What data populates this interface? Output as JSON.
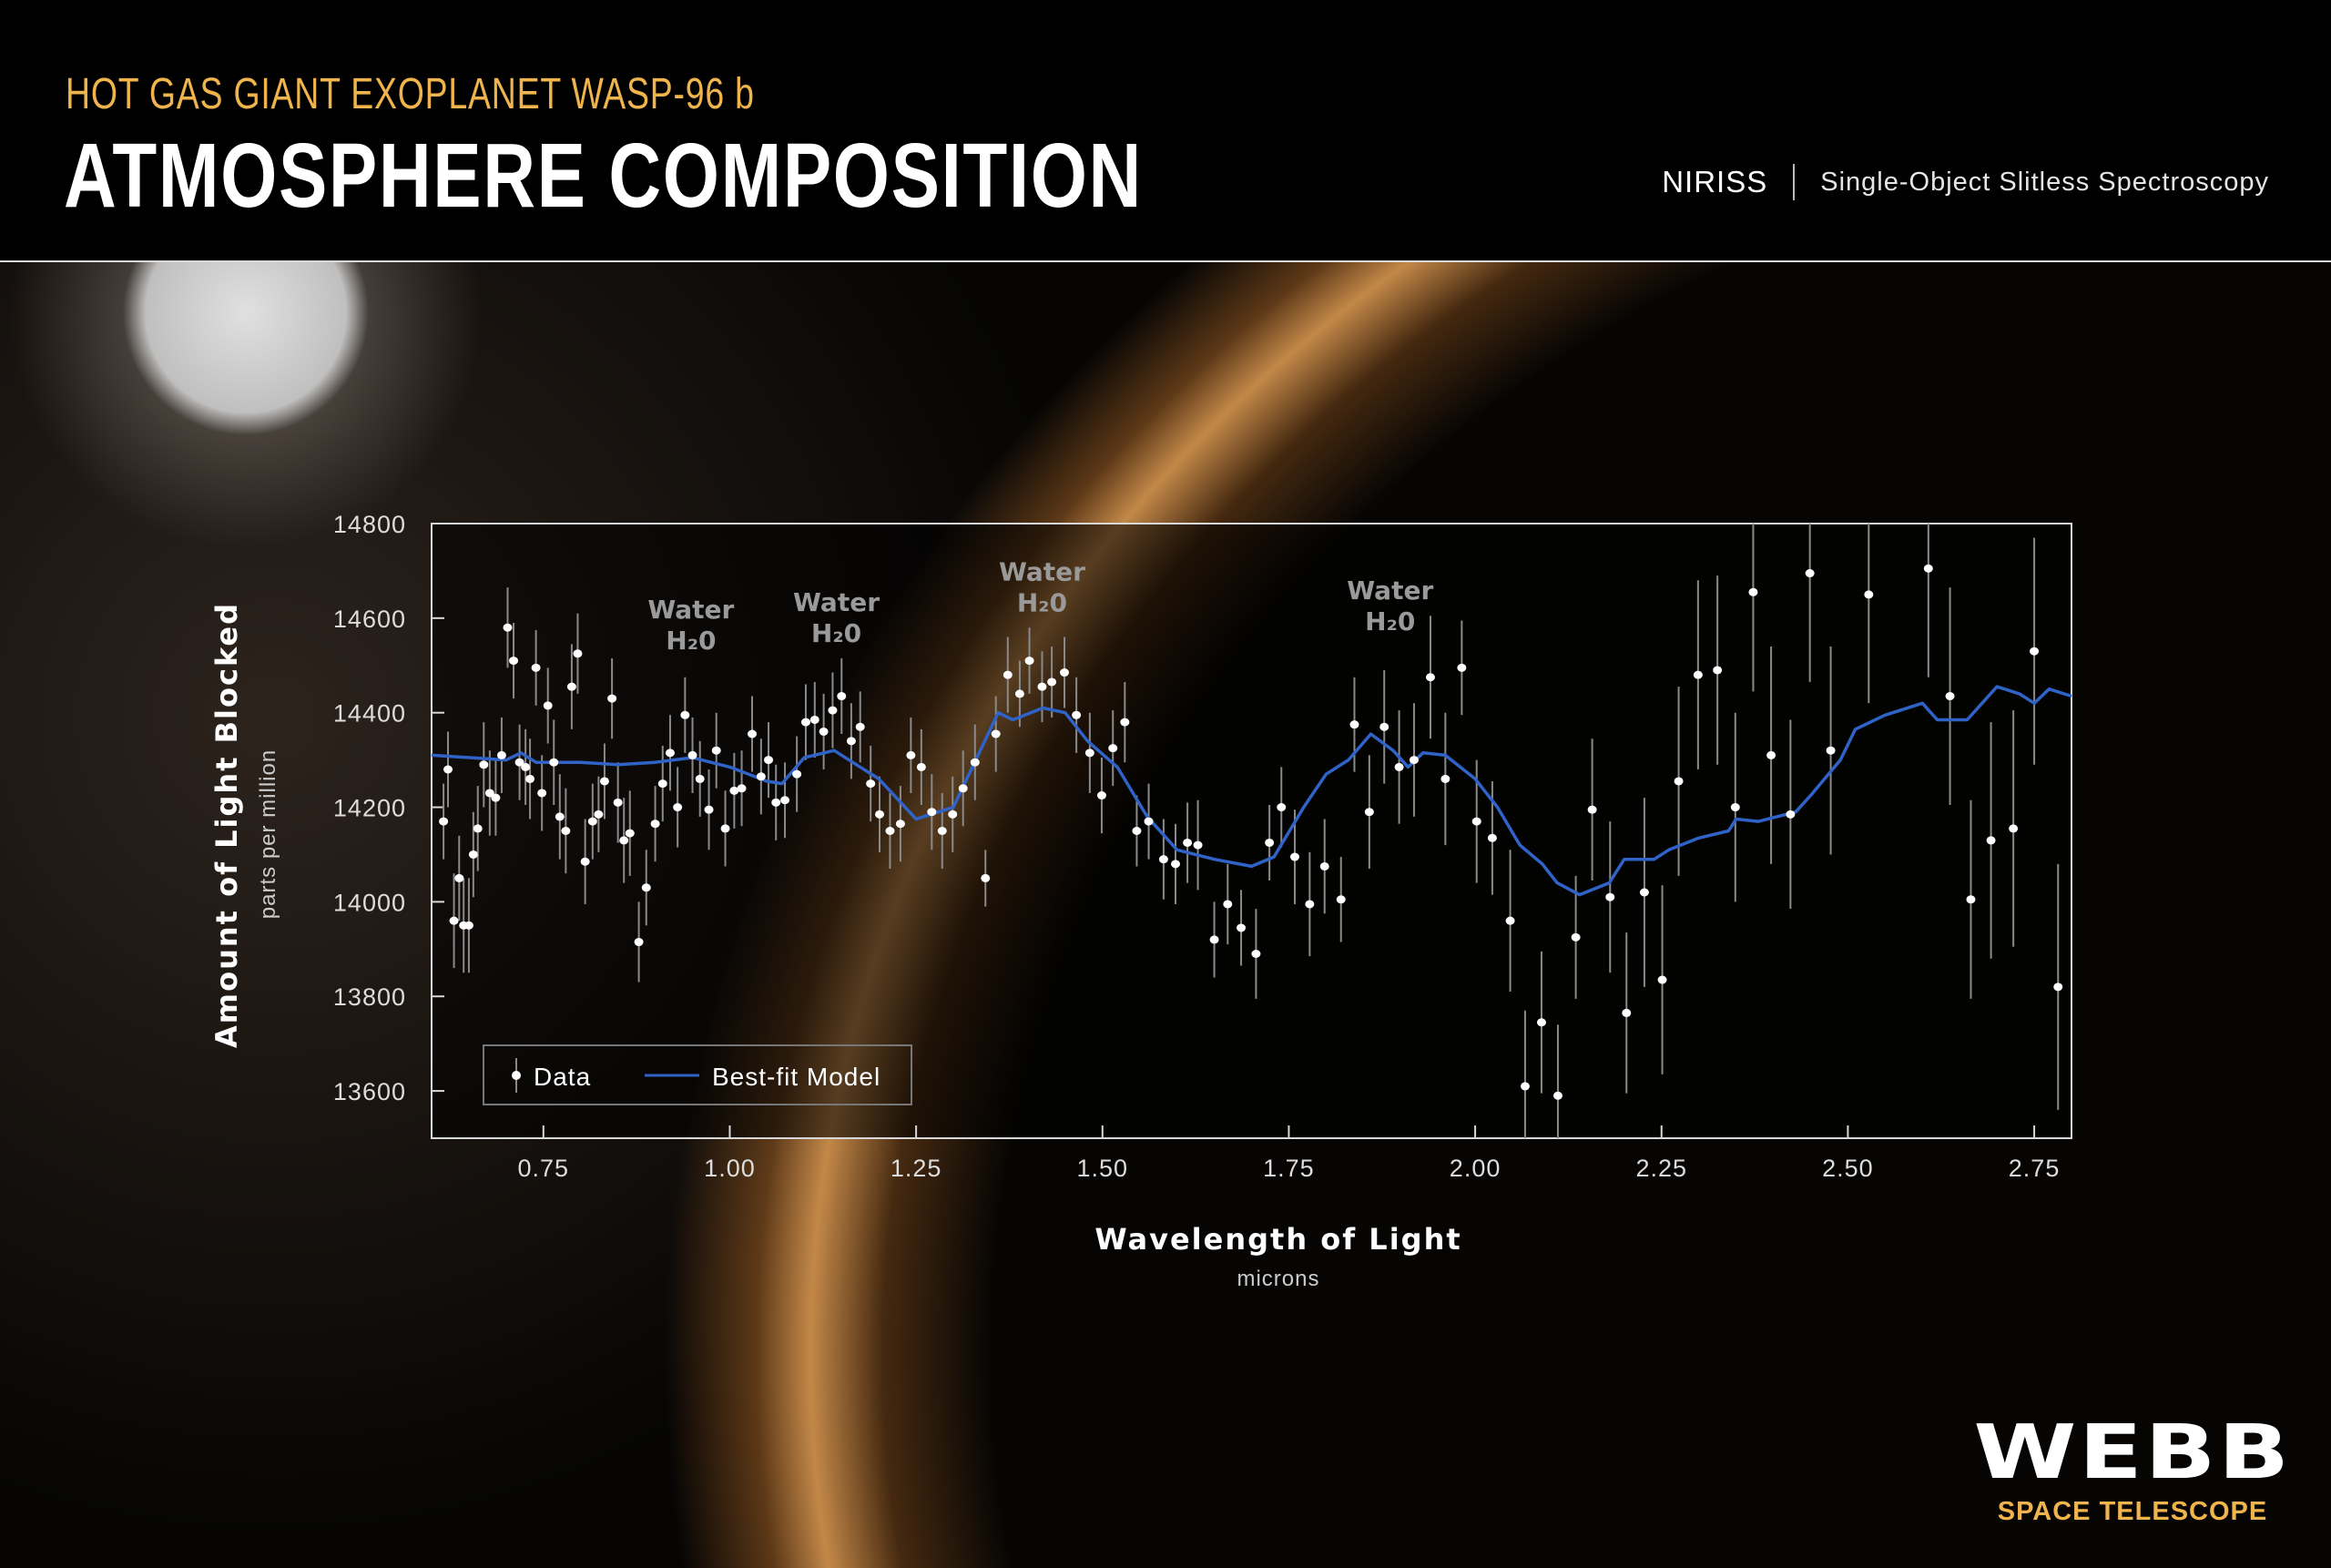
{
  "header": {
    "subtitle": "HOT GAS GIANT EXOPLANET WASP-96 b",
    "title": "ATMOSPHERE COMPOSITION",
    "instrument": "NIRISS",
    "mode": "Single-Object Slitless Spectroscopy"
  },
  "logo": {
    "name": "WEBB",
    "tagline": "SPACE TELESCOPE"
  },
  "colors": {
    "accent": "#f0b44c",
    "model": "#2f63c8",
    "data": "#ffffff",
    "errorbar": "#8a8a8a"
  },
  "chart_data": {
    "type": "scatter",
    "xlabel": "Wavelength of Light",
    "xunit": "microns",
    "ylabel": "Amount of Light Blocked",
    "yunit": "parts per million",
    "xlim": [
      0.6,
      2.8
    ],
    "ylim": [
      13500,
      14800
    ],
    "xticks": [
      "0.75",
      "1.00",
      "1.25",
      "1.50",
      "1.75",
      "2.00",
      "2.25",
      "2.50",
      "2.75"
    ],
    "yticks": [
      "13600",
      "13800",
      "14000",
      "14200",
      "14400",
      "14600",
      "14800"
    ],
    "grid": false,
    "legend": {
      "placement": "bottom-left",
      "entries": [
        "Data",
        "Best-fit Model"
      ]
    },
    "annotations": [
      {
        "text": "Water",
        "formula": "H₂0",
        "x": 0.948,
        "y": 14600
      },
      {
        "text": "Water",
        "formula": "H₂0",
        "x": 1.143,
        "y": 14615
      },
      {
        "text": "Water",
        "formula": "H₂0",
        "x": 1.419,
        "y": 14680
      },
      {
        "text": "Water",
        "formula": "H₂0",
        "x": 1.886,
        "y": 14640
      }
    ],
    "series": [
      {
        "name": "Data",
        "kind": "points-with-errorbars",
        "points": [
          [
            0.616,
            14170,
            80
          ],
          [
            0.622,
            14280,
            80
          ],
          [
            0.63,
            13960,
            100
          ],
          [
            0.637,
            14050,
            90
          ],
          [
            0.643,
            13950,
            100
          ],
          [
            0.65,
            13950,
            100
          ],
          [
            0.656,
            14100,
            90
          ],
          [
            0.662,
            14155,
            90
          ],
          [
            0.67,
            14290,
            90
          ],
          [
            0.678,
            14230,
            90
          ],
          [
            0.686,
            14220,
            80
          ],
          [
            0.694,
            14310,
            80
          ],
          [
            0.702,
            14580,
            85
          ],
          [
            0.71,
            14510,
            80
          ],
          [
            0.718,
            14295,
            80
          ],
          [
            0.726,
            14285,
            80
          ],
          [
            0.732,
            14260,
            85
          ],
          [
            0.74,
            14495,
            80
          ],
          [
            0.748,
            14230,
            80
          ],
          [
            0.756,
            14415,
            80
          ],
          [
            0.764,
            14295,
            90
          ],
          [
            0.772,
            14180,
            90
          ],
          [
            0.78,
            14150,
            90
          ],
          [
            0.788,
            14455,
            90
          ],
          [
            0.796,
            14525,
            85
          ],
          [
            0.806,
            14085,
            90
          ],
          [
            0.816,
            14170,
            80
          ],
          [
            0.824,
            14185,
            80
          ],
          [
            0.832,
            14255,
            80
          ],
          [
            0.842,
            14430,
            85
          ],
          [
            0.85,
            14210,
            85
          ],
          [
            0.858,
            14130,
            90
          ],
          [
            0.866,
            14145,
            90
          ],
          [
            0.878,
            13915,
            85
          ],
          [
            0.888,
            14030,
            80
          ],
          [
            0.9,
            14165,
            80
          ],
          [
            0.91,
            14250,
            80
          ],
          [
            0.92,
            14315,
            80
          ],
          [
            0.93,
            14200,
            85
          ],
          [
            0.94,
            14395,
            80
          ],
          [
            0.95,
            14310,
            80
          ],
          [
            0.96,
            14260,
            80
          ],
          [
            0.972,
            14195,
            85
          ],
          [
            0.982,
            14320,
            80
          ],
          [
            0.994,
            14155,
            80
          ],
          [
            1.006,
            14235,
            80
          ],
          [
            1.016,
            14240,
            80
          ],
          [
            1.03,
            14355,
            80
          ],
          [
            1.042,
            14265,
            80
          ],
          [
            1.052,
            14300,
            80
          ],
          [
            1.062,
            14210,
            80
          ],
          [
            1.074,
            14215,
            80
          ],
          [
            1.09,
            14270,
            80
          ],
          [
            1.102,
            14380,
            80
          ],
          [
            1.114,
            14385,
            80
          ],
          [
            1.126,
            14360,
            80
          ],
          [
            1.138,
            14405,
            80
          ],
          [
            1.15,
            14435,
            80
          ],
          [
            1.163,
            14340,
            80
          ],
          [
            1.175,
            14370,
            75
          ],
          [
            1.189,
            14250,
            80
          ],
          [
            1.201,
            14185,
            80
          ],
          [
            1.215,
            14150,
            80
          ],
          [
            1.229,
            14165,
            80
          ],
          [
            1.243,
            14310,
            80
          ],
          [
            1.257,
            14285,
            80
          ],
          [
            1.271,
            14190,
            80
          ],
          [
            1.285,
            14150,
            80
          ],
          [
            1.299,
            14185,
            80
          ],
          [
            1.313,
            14240,
            80
          ],
          [
            1.329,
            14295,
            80
          ],
          [
            1.343,
            14050,
            60
          ],
          [
            1.357,
            14355,
            80
          ],
          [
            1.373,
            14480,
            80
          ],
          [
            1.389,
            14440,
            70
          ],
          [
            1.402,
            14510,
            70
          ],
          [
            1.419,
            14455,
            75
          ],
          [
            1.432,
            14465,
            75
          ],
          [
            1.449,
            14485,
            75
          ],
          [
            1.465,
            14395,
            80
          ],
          [
            1.483,
            14315,
            85
          ],
          [
            1.499,
            14225,
            80
          ],
          [
            1.514,
            14325,
            80
          ],
          [
            1.53,
            14380,
            85
          ],
          [
            1.546,
            14150,
            75
          ],
          [
            1.562,
            14170,
            80
          ],
          [
            1.582,
            14090,
            85
          ],
          [
            1.598,
            14080,
            85
          ],
          [
            1.614,
            14125,
            85
          ],
          [
            1.628,
            14120,
            95
          ],
          [
            1.65,
            13920,
            80
          ],
          [
            1.668,
            13995,
            85
          ],
          [
            1.686,
            13945,
            80
          ],
          [
            1.706,
            13890,
            95
          ],
          [
            1.724,
            14125,
            80
          ],
          [
            1.74,
            14200,
            85
          ],
          [
            1.758,
            14095,
            100
          ],
          [
            1.778,
            13995,
            110
          ],
          [
            1.798,
            14075,
            100
          ],
          [
            1.82,
            14005,
            90
          ],
          [
            1.838,
            14375,
            100
          ],
          [
            1.858,
            14190,
            120
          ],
          [
            1.878,
            14370,
            120
          ],
          [
            1.898,
            14285,
            120
          ],
          [
            1.918,
            14300,
            120
          ],
          [
            1.94,
            14475,
            130
          ],
          [
            1.96,
            14260,
            140
          ],
          [
            1.982,
            14495,
            100
          ],
          [
            2.002,
            14170,
            130
          ],
          [
            2.023,
            14135,
            120
          ],
          [
            2.047,
            13960,
            150
          ],
          [
            2.067,
            13610,
            160
          ],
          [
            2.089,
            13745,
            150
          ],
          [
            2.111,
            13590,
            150
          ],
          [
            2.135,
            13925,
            130
          ],
          [
            2.157,
            14195,
            150
          ],
          [
            2.181,
            14010,
            160
          ],
          [
            2.203,
            13765,
            170
          ],
          [
            2.227,
            14020,
            200
          ],
          [
            2.251,
            13835,
            200
          ],
          [
            2.273,
            14255,
            200
          ],
          [
            2.299,
            14480,
            200
          ],
          [
            2.325,
            14490,
            200
          ],
          [
            2.349,
            14200,
            200
          ],
          [
            2.373,
            14655,
            210
          ],
          [
            2.397,
            14310,
            230
          ],
          [
            2.423,
            14185,
            200
          ],
          [
            2.449,
            14695,
            230
          ],
          [
            2.477,
            14320,
            220
          ],
          [
            2.528,
            14650,
            230
          ],
          [
            2.608,
            14705,
            230
          ],
          [
            2.637,
            14435,
            230
          ],
          [
            2.665,
            14005,
            210
          ],
          [
            2.692,
            14130,
            250
          ],
          [
            2.722,
            14155,
            250
          ],
          [
            2.75,
            14530,
            240
          ],
          [
            2.782,
            13820,
            260
          ]
        ]
      },
      {
        "name": "Best-fit Model",
        "kind": "line",
        "points": [
          [
            0.6,
            14310
          ],
          [
            0.7,
            14300
          ],
          [
            0.72,
            14315
          ],
          [
            0.74,
            14295
          ],
          [
            0.8,
            14295
          ],
          [
            0.85,
            14290
          ],
          [
            0.9,
            14295
          ],
          [
            0.95,
            14305
          ],
          [
            1.0,
            14285
          ],
          [
            1.05,
            14255
          ],
          [
            1.07,
            14250
          ],
          [
            1.1,
            14305
          ],
          [
            1.14,
            14320
          ],
          [
            1.17,
            14290
          ],
          [
            1.2,
            14260
          ],
          [
            1.25,
            14175
          ],
          [
            1.3,
            14200
          ],
          [
            1.33,
            14300
          ],
          [
            1.36,
            14400
          ],
          [
            1.38,
            14385
          ],
          [
            1.42,
            14410
          ],
          [
            1.45,
            14400
          ],
          [
            1.48,
            14340
          ],
          [
            1.52,
            14285
          ],
          [
            1.56,
            14180
          ],
          [
            1.6,
            14110
          ],
          [
            1.65,
            14090
          ],
          [
            1.7,
            14075
          ],
          [
            1.73,
            14095
          ],
          [
            1.77,
            14200
          ],
          [
            1.8,
            14270
          ],
          [
            1.83,
            14300
          ],
          [
            1.86,
            14355
          ],
          [
            1.89,
            14320
          ],
          [
            1.91,
            14285
          ],
          [
            1.93,
            14315
          ],
          [
            1.96,
            14310
          ],
          [
            2.0,
            14260
          ],
          [
            2.03,
            14200
          ],
          [
            2.06,
            14120
          ],
          [
            2.09,
            14080
          ],
          [
            2.11,
            14040
          ],
          [
            2.14,
            14015
          ],
          [
            2.18,
            14040
          ],
          [
            2.2,
            14090
          ],
          [
            2.24,
            14090
          ],
          [
            2.26,
            14110
          ],
          [
            2.3,
            14135
          ],
          [
            2.34,
            14150
          ],
          [
            2.35,
            14175
          ],
          [
            2.38,
            14170
          ],
          [
            2.43,
            14190
          ],
          [
            2.45,
            14225
          ],
          [
            2.49,
            14300
          ],
          [
            2.51,
            14365
          ],
          [
            2.55,
            14395
          ],
          [
            2.6,
            14420
          ],
          [
            2.62,
            14385
          ],
          [
            2.66,
            14385
          ],
          [
            2.68,
            14420
          ],
          [
            2.7,
            14455
          ],
          [
            2.73,
            14440
          ],
          [
            2.75,
            14420
          ],
          [
            2.77,
            14450
          ],
          [
            2.8,
            14435
          ]
        ]
      }
    ]
  }
}
